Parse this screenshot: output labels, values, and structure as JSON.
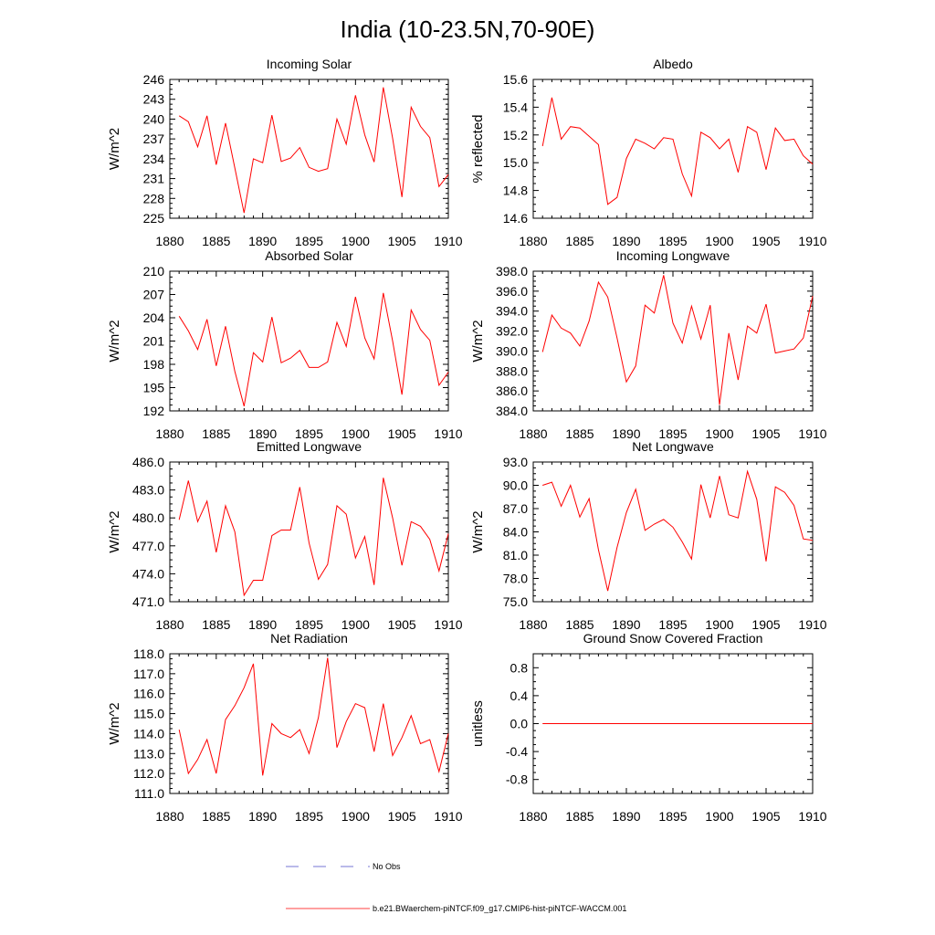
{
  "figure": {
    "title": "India (10-23.5N,70-90E)",
    "line_color": "#ff0000",
    "obs_color": "#4a4ac8",
    "legend": [
      {
        "label": "No Obs",
        "style": "dashed",
        "color": "#4a4ac8"
      },
      {
        "label": "b.e21.BWaerchem-piNTCF.f09_g17.CMIP6-hist-piNTCF-WACCM.001",
        "style": "solid",
        "color": "#ff0000"
      }
    ]
  },
  "chart_data": [
    {
      "type": "line",
      "title": "Incoming Solar",
      "ylabel": "W/m^2",
      "xlim": [
        1880,
        1910
      ],
      "ylim": [
        225,
        246
      ],
      "yticks": [
        "225",
        "228",
        "231",
        "234",
        "237",
        "240",
        "243",
        "246"
      ],
      "xticks": [
        "1880",
        "1885",
        "1890",
        "1895",
        "1900",
        "1905",
        "1910"
      ],
      "x": [
        1881,
        1882,
        1883,
        1884,
        1885,
        1886,
        1887,
        1888,
        1889,
        1890,
        1891,
        1892,
        1893,
        1894,
        1895,
        1896,
        1897,
        1898,
        1899,
        1900,
        1901,
        1902,
        1903,
        1904,
        1905,
        1906,
        1907,
        1908,
        1909,
        1910
      ],
      "values": [
        240.5,
        239.6,
        235.8,
        240.5,
        233.1,
        239.4,
        232.6,
        225.8,
        234.0,
        233.4,
        240.6,
        233.6,
        234.1,
        235.7,
        232.7,
        232.1,
        232.5,
        240.0,
        236.2,
        243.6,
        237.6,
        233.5,
        244.8,
        237.1,
        228.2,
        241.8,
        238.9,
        237.2,
        229.8,
        231.6
      ]
    },
    {
      "type": "line",
      "title": "Albedo",
      "ylabel": "% reflected",
      "xlim": [
        1880,
        1910
      ],
      "ylim": [
        14.6,
        15.6
      ],
      "yticks": [
        "14.6",
        "14.8",
        "15.0",
        "15.2",
        "15.4",
        "15.6"
      ],
      "xticks": [
        "1880",
        "1885",
        "1890",
        "1895",
        "1900",
        "1905",
        "1910"
      ],
      "x": [
        1881,
        1882,
        1883,
        1884,
        1885,
        1886,
        1887,
        1888,
        1889,
        1890,
        1891,
        1892,
        1893,
        1894,
        1895,
        1896,
        1897,
        1898,
        1899,
        1900,
        1901,
        1902,
        1903,
        1904,
        1905,
        1906,
        1907,
        1908,
        1909,
        1910
      ],
      "values": [
        15.12,
        15.47,
        15.17,
        15.26,
        15.25,
        15.19,
        15.13,
        14.7,
        14.75,
        15.03,
        15.17,
        15.14,
        15.1,
        15.18,
        15.17,
        14.92,
        14.76,
        15.22,
        15.18,
        15.1,
        15.17,
        14.93,
        15.26,
        15.22,
        14.95,
        15.25,
        15.16,
        15.17,
        15.05,
        14.99
      ]
    },
    {
      "type": "line",
      "title": "Absorbed Solar",
      "ylabel": "W/m^2",
      "xlim": [
        1880,
        1910
      ],
      "ylim": [
        192,
        210
      ],
      "yticks": [
        "192",
        "195",
        "198",
        "201",
        "204",
        "207",
        "210"
      ],
      "xticks": [
        "1880",
        "1885",
        "1890",
        "1895",
        "1900",
        "1905",
        "1910"
      ],
      "x": [
        1881,
        1882,
        1883,
        1884,
        1885,
        1886,
        1887,
        1888,
        1889,
        1890,
        1891,
        1892,
        1893,
        1894,
        1895,
        1896,
        1897,
        1898,
        1899,
        1900,
        1901,
        1902,
        1903,
        1904,
        1905,
        1906,
        1907,
        1908,
        1909,
        1910
      ],
      "values": [
        204.2,
        202.3,
        199.9,
        203.8,
        197.8,
        202.9,
        197.1,
        192.6,
        199.5,
        198.3,
        204.1,
        198.2,
        198.8,
        199.8,
        197.6,
        197.6,
        198.3,
        203.4,
        200.3,
        206.7,
        201.4,
        198.7,
        207.2,
        201.0,
        194.1,
        205.0,
        202.5,
        201.1,
        195.3,
        197.0
      ]
    },
    {
      "type": "line",
      "title": "Incoming Longwave",
      "ylabel": "W/m^2",
      "xlim": [
        1880,
        1910
      ],
      "ylim": [
        384.0,
        398.0
      ],
      "yticks": [
        "384.0",
        "386.0",
        "388.0",
        "390.0",
        "392.0",
        "394.0",
        "396.0",
        "398.0"
      ],
      "xticks": [
        "1880",
        "1885",
        "1890",
        "1895",
        "1900",
        "1905",
        "1910"
      ],
      "x": [
        1881,
        1882,
        1883,
        1884,
        1885,
        1886,
        1887,
        1888,
        1889,
        1890,
        1891,
        1892,
        1893,
        1894,
        1895,
        1896,
        1897,
        1898,
        1899,
        1900,
        1901,
        1902,
        1903,
        1904,
        1905,
        1906,
        1907,
        1908,
        1909,
        1910
      ],
      "values": [
        389.9,
        393.6,
        392.3,
        391.8,
        390.5,
        393.0,
        396.9,
        395.4,
        391.3,
        386.9,
        388.5,
        394.6,
        393.8,
        397.6,
        392.8,
        390.8,
        394.5,
        391.2,
        394.6,
        384.6,
        391.8,
        387.1,
        392.5,
        391.8,
        394.7,
        389.8,
        390.0,
        390.2,
        391.3,
        395.5
      ]
    },
    {
      "type": "line",
      "title": "Emitted Longwave",
      "ylabel": "W/m^2",
      "xlim": [
        1880,
        1910
      ],
      "ylim": [
        471.0,
        486.0
      ],
      "yticks": [
        "471.0",
        "474.0",
        "477.0",
        "480.0",
        "483.0",
        "486.0"
      ],
      "xticks": [
        "1880",
        "1885",
        "1890",
        "1895",
        "1900",
        "1905",
        "1910"
      ],
      "x": [
        1881,
        1882,
        1883,
        1884,
        1885,
        1886,
        1887,
        1888,
        1889,
        1890,
        1891,
        1892,
        1893,
        1894,
        1895,
        1896,
        1897,
        1898,
        1899,
        1900,
        1901,
        1902,
        1903,
        1904,
        1905,
        1906,
        1907,
        1908,
        1909,
        1910
      ],
      "values": [
        479.8,
        484.0,
        479.6,
        481.8,
        476.3,
        481.3,
        478.5,
        471.7,
        473.3,
        473.3,
        478.1,
        478.7,
        478.7,
        483.3,
        477.3,
        473.4,
        475.0,
        481.3,
        480.4,
        475.7,
        478.0,
        472.8,
        484.3,
        480.0,
        474.9,
        479.6,
        479.1,
        477.7,
        474.3,
        478.3
      ]
    },
    {
      "type": "line",
      "title": "Net Longwave",
      "ylabel": "W/m^2",
      "xlim": [
        1880,
        1910
      ],
      "ylim": [
        75.0,
        93.0
      ],
      "yticks": [
        "75.0",
        "78.0",
        "81.0",
        "84.0",
        "87.0",
        "90.0",
        "93.0"
      ],
      "xticks": [
        "1880",
        "1885",
        "1890",
        "1895",
        "1900",
        "1905",
        "1910"
      ],
      "x": [
        1881,
        1882,
        1883,
        1884,
        1885,
        1886,
        1887,
        1888,
        1889,
        1890,
        1891,
        1892,
        1893,
        1894,
        1895,
        1896,
        1897,
        1898,
        1899,
        1900,
        1901,
        1902,
        1903,
        1904,
        1905,
        1906,
        1907,
        1908,
        1909,
        1910
      ],
      "values": [
        90.0,
        90.4,
        87.3,
        90.0,
        85.9,
        88.3,
        81.7,
        76.4,
        82.0,
        86.5,
        89.5,
        84.2,
        85.0,
        85.6,
        84.6,
        82.7,
        80.5,
        90.1,
        85.8,
        91.2,
        86.2,
        85.8,
        91.8,
        88.2,
        80.2,
        89.8,
        89.1,
        87.4,
        83.1,
        82.9
      ]
    },
    {
      "type": "line",
      "title": "Net Radiation",
      "ylabel": "W/m^2",
      "xlim": [
        1880,
        1910
      ],
      "ylim": [
        111.0,
        118.0
      ],
      "yticks": [
        "111.0",
        "112.0",
        "113.0",
        "114.0",
        "115.0",
        "116.0",
        "117.0",
        "118.0"
      ],
      "xticks": [
        "1880",
        "1885",
        "1890",
        "1895",
        "1900",
        "1905",
        "1910"
      ],
      "x": [
        1881,
        1882,
        1883,
        1884,
        1885,
        1886,
        1887,
        1888,
        1889,
        1890,
        1891,
        1892,
        1893,
        1894,
        1895,
        1896,
        1897,
        1898,
        1899,
        1900,
        1901,
        1902,
        1903,
        1904,
        1905,
        1906,
        1907,
        1908,
        1909,
        1910
      ],
      "values": [
        114.2,
        112.0,
        112.7,
        113.7,
        112.0,
        114.7,
        115.4,
        116.3,
        117.5,
        111.9,
        114.5,
        114.0,
        113.8,
        114.2,
        113.0,
        114.8,
        117.8,
        113.3,
        114.6,
        115.5,
        115.3,
        113.1,
        115.5,
        112.9,
        113.8,
        114.9,
        113.5,
        113.7,
        112.1,
        114.0
      ]
    },
    {
      "type": "line",
      "title": "Ground Snow Covered Fraction",
      "ylabel": "unitless",
      "xlim": [
        1880,
        1910
      ],
      "ylim": [
        -1.0,
        1.0
      ],
      "ytick_values": [
        -0.8,
        -0.4,
        0.0,
        0.4,
        0.8
      ],
      "yticks": [
        "-0.8",
        "-0.4",
        "0.0",
        "0.4",
        "0.8"
      ],
      "xticks": [
        "1880",
        "1885",
        "1890",
        "1895",
        "1900",
        "1905",
        "1910"
      ],
      "x": [
        1881,
        1910
      ],
      "values": [
        0.0,
        0.0
      ]
    }
  ]
}
